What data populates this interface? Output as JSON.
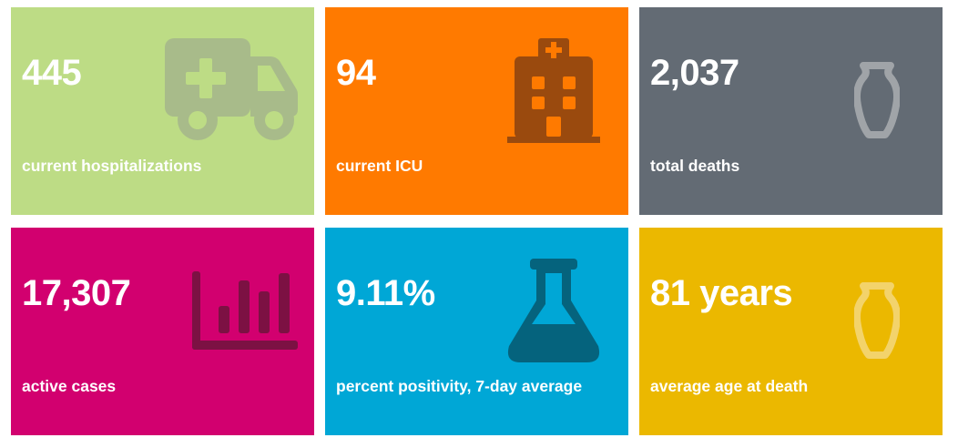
{
  "tiles": [
    {
      "value": "445",
      "label": "current hospitalizations",
      "color": "#bddc85",
      "icon": "ambulance-icon",
      "icon_color": "#a8bb8a"
    },
    {
      "value": "94",
      "label": "current ICU",
      "color": "#ff7a00",
      "icon": "hospital-building-icon",
      "icon_color": "#9a4a0e"
    },
    {
      "value": "2,037",
      "label": "total deaths",
      "color": "#636b74",
      "icon": "urn-icon",
      "icon_color": "#a0a4a8"
    },
    {
      "value": "17,307",
      "label": "active cases",
      "color": "#d2006f",
      "icon": "bar-chart-icon",
      "icon_color": "#7c1143"
    },
    {
      "value": "9.11%",
      "label": "percent positivity, 7-day average",
      "color": "#00a7d6",
      "icon": "flask-icon",
      "icon_color": "#05637d"
    },
    {
      "value": "81 years",
      "label": "average age at death",
      "color": "#ebb800",
      "icon": "urn-icon",
      "icon_color": "#f3d36b"
    }
  ]
}
